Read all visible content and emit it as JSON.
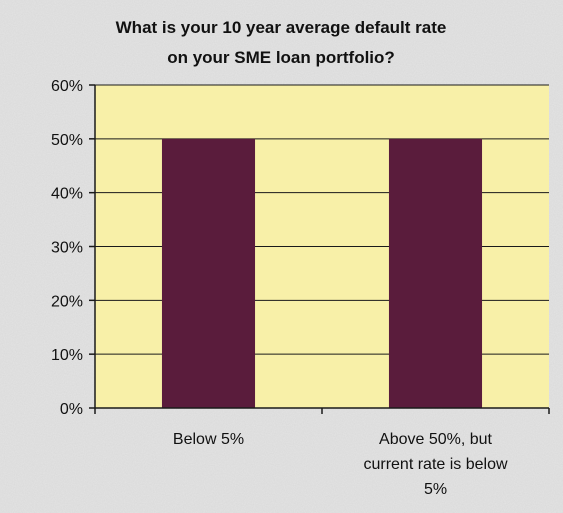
{
  "chart_data": {
    "type": "bar",
    "title": "What is your 10 year average default rate on your SME loan portfolio?",
    "title_lines": [
      "What is your 10 year average default rate",
      "on your SME loan portfolio?"
    ],
    "categories": [
      "Below 5%",
      "Above 50%, but current rate is below 5%"
    ],
    "category_lines": [
      [
        "Below 5%"
      ],
      [
        "Above 50%, but",
        "current rate is below",
        "5%"
      ]
    ],
    "values": [
      50,
      50
    ],
    "ylim": [
      0,
      60
    ],
    "yticks": [
      0,
      10,
      20,
      30,
      40,
      50,
      60
    ],
    "ytick_labels": [
      "0%",
      "10%",
      "20%",
      "30%",
      "40%",
      "50%",
      "60%"
    ],
    "xlabel": "",
    "ylabel": "",
    "grid": true,
    "legend": "none",
    "colors": {
      "bar": "#5a1c3c",
      "plot_background": "#f8f0a8",
      "chart_background": "#e4e4e4",
      "grid": "#1a1a1a",
      "text": "#111111"
    }
  }
}
